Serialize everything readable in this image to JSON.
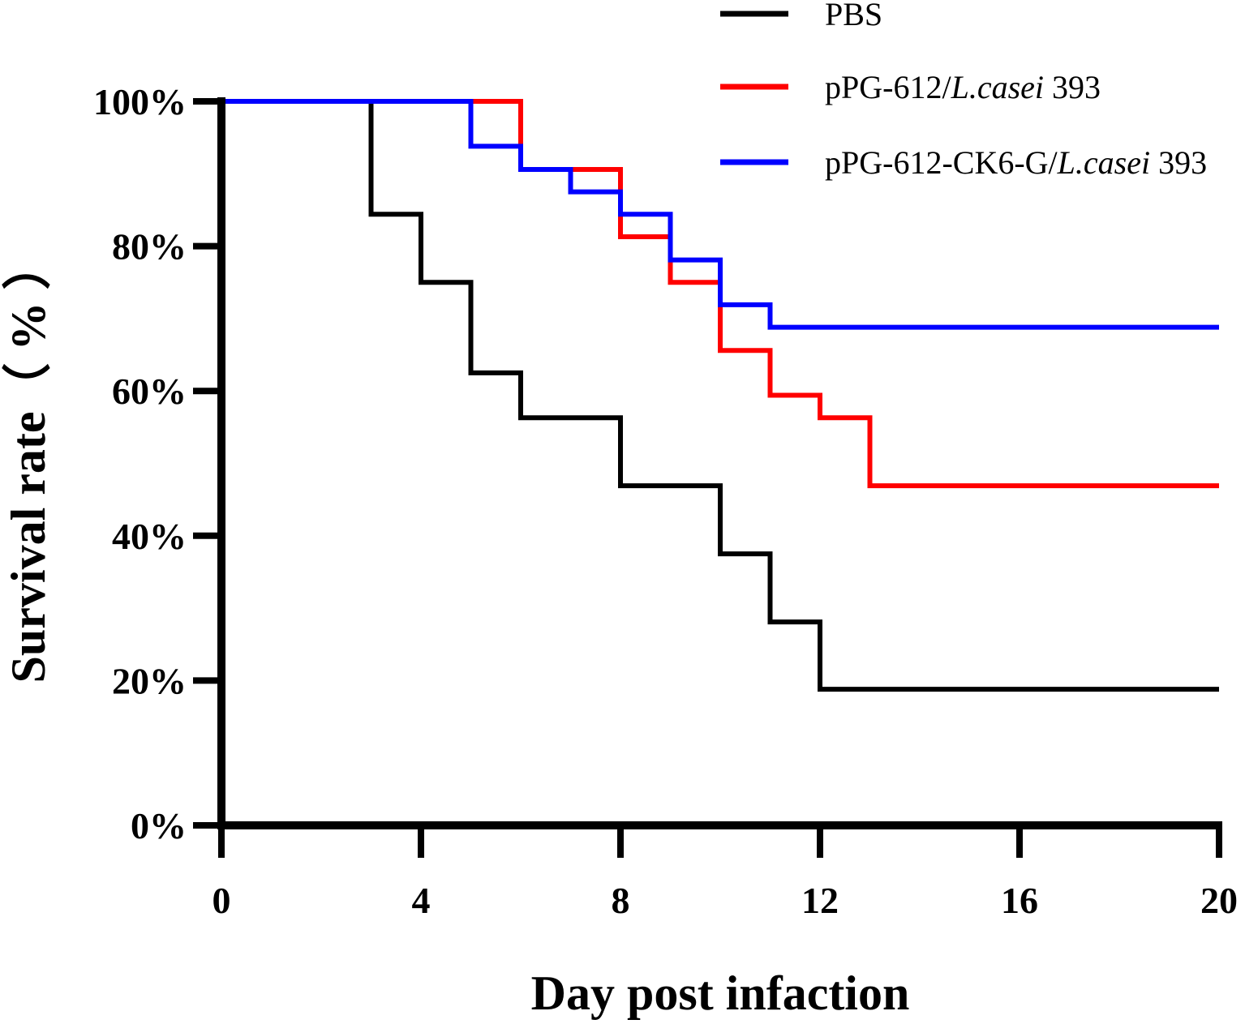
{
  "chart_data": {
    "type": "line",
    "subtype": "step",
    "title": "",
    "xlabel": "Day post infaction",
    "ylabel": "Survival rate（ % ）",
    "xlim": [
      0,
      20
    ],
    "ylim": [
      0,
      100
    ],
    "xticks": [
      0,
      4,
      8,
      12,
      16,
      20
    ],
    "xtick_labels": [
      "0",
      "4",
      "8",
      "12",
      "16",
      "20"
    ],
    "yticks": [
      0,
      20,
      40,
      60,
      80,
      100
    ],
    "ytick_labels": [
      "0%",
      "20%",
      "40%",
      "60%",
      "80%",
      "100%"
    ],
    "grid": false,
    "legend_position": "top-right",
    "series": [
      {
        "name": "PBS",
        "legend_parts": [
          {
            "text": "PBS",
            "italic": false
          }
        ],
        "color": "#000000",
        "x": [
          0,
          3,
          4,
          5,
          6,
          8,
          10,
          11,
          12,
          20
        ],
        "y": [
          100,
          84.4,
          75,
          62.5,
          56.3,
          46.9,
          37.5,
          28.1,
          18.8,
          18.8
        ]
      },
      {
        "name": "pPG-612/L.casei 393",
        "legend_parts": [
          {
            "text": "pPG-612/",
            "italic": false
          },
          {
            "text": "L.casei",
            "italic": true
          },
          {
            "text": " 393",
            "italic": false
          }
        ],
        "color": "#ff0000",
        "x": [
          0,
          6,
          8,
          9,
          10,
          11,
          12,
          13,
          20
        ],
        "y": [
          100,
          90.6,
          81.3,
          75,
          65.6,
          59.4,
          56.3,
          46.9,
          46.9
        ]
      },
      {
        "name": "pPG-612-CK6-G/L.casei 393",
        "legend_parts": [
          {
            "text": "pPG-612-CK6-G/",
            "italic": false
          },
          {
            "text": "L.casei",
            "italic": true
          },
          {
            "text": " 393",
            "italic": false
          }
        ],
        "color": "#0000ff",
        "x": [
          0,
          5,
          6,
          7,
          8,
          9,
          10,
          11,
          20
        ],
        "y": [
          100,
          93.8,
          90.6,
          87.5,
          84.4,
          78.1,
          71.9,
          68.8,
          68.8
        ]
      }
    ]
  }
}
